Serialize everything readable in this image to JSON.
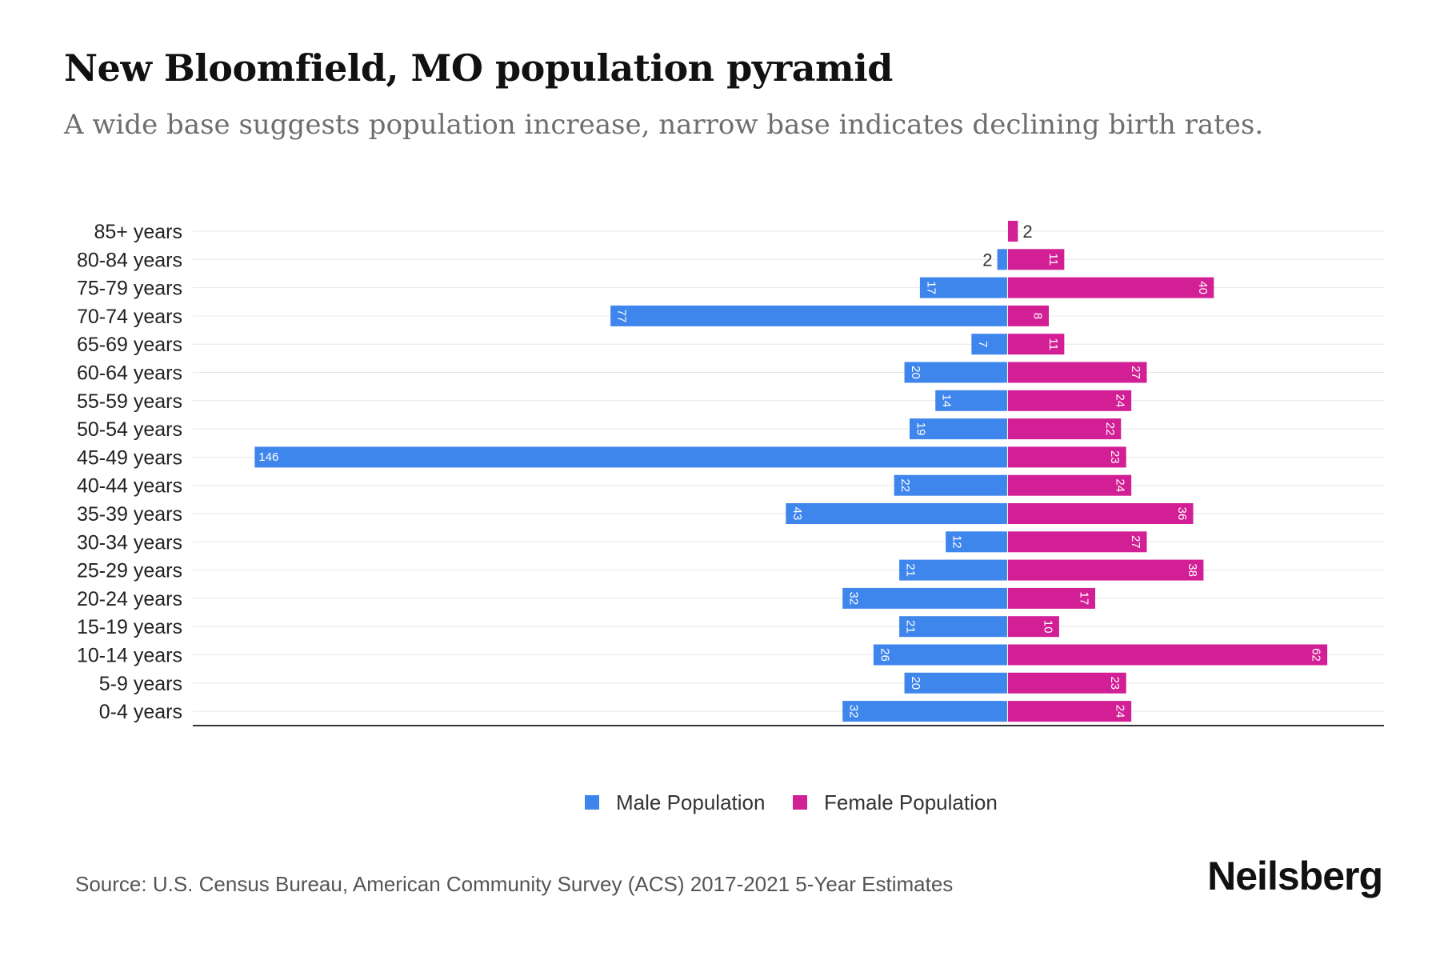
{
  "colors": {
    "male": "#3f86ec",
    "female": "#d21f95",
    "grid": "#e6e6e6",
    "axis": "#333333"
  },
  "brand": "Neilsberg",
  "source": "Source: U.S. Census Bureau, American Community Survey (ACS) 2017-2021 5-Year Estimates",
  "chart_data": {
    "type": "bar",
    "orientation": "horizontal-pyramid",
    "title": "New Bloomfield, MO population pyramid",
    "subtitle": "A wide base suggests population increase, narrow base indicates declining birth rates.",
    "categories": [
      "85+ years",
      "80-84 years",
      "75-79 years",
      "70-74 years",
      "65-69 years",
      "60-64 years",
      "55-59 years",
      "50-54 years",
      "45-49 years",
      "40-44 years",
      "35-39 years",
      "30-34 years",
      "25-29 years",
      "20-24 years",
      "15-19 years",
      "10-14 years",
      "5-9 years",
      "0-4 years"
    ],
    "series": [
      {
        "name": "Male Population",
        "values": [
          0,
          2,
          17,
          77,
          7,
          20,
          14,
          19,
          146,
          22,
          43,
          12,
          21,
          32,
          21,
          26,
          20,
          32
        ]
      },
      {
        "name": "Female Population",
        "values": [
          2,
          11,
          40,
          8,
          11,
          27,
          24,
          22,
          23,
          24,
          36,
          27,
          38,
          17,
          10,
          62,
          23,
          24
        ]
      }
    ],
    "legend": [
      "Male Population",
      "Female Population"
    ],
    "legend_position": "bottom-center",
    "xlim": [
      -158,
      73
    ],
    "grid": true
  }
}
